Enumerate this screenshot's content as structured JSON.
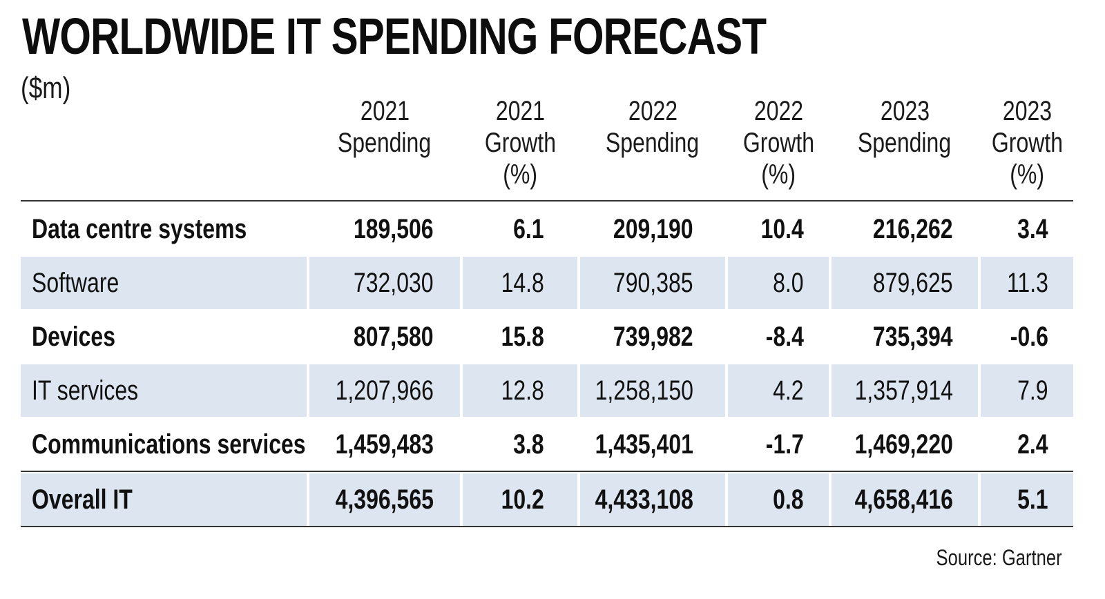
{
  "title": "WORLDWIDE IT SPENDING FORECAST",
  "subtitle": "($m)",
  "source": "Source: Gartner",
  "colors": {
    "row_shade": "#dde6f0",
    "text": "#111111",
    "rule": "#333333"
  },
  "chart_data": {
    "type": "table",
    "title": "WORLDWIDE IT SPENDING FORECAST",
    "subtitle": "($m)",
    "columns": [
      {
        "line1": "2021",
        "line2": "Spending",
        "line3": ""
      },
      {
        "line1": "2021",
        "line2": "Growth",
        "line3": "(%)"
      },
      {
        "line1": "2022",
        "line2": "Spending",
        "line3": ""
      },
      {
        "line1": "2022",
        "line2": "Growth",
        "line3": "(%)"
      },
      {
        "line1": "2023",
        "line2": "Spending",
        "line3": ""
      },
      {
        "line1": "2023",
        "line2": "Growth",
        "line3": "(%)"
      }
    ],
    "rows": [
      {
        "label": "Data centre systems",
        "bold": true,
        "values": [
          "189,506",
          "6.1",
          "209,190",
          "10.4",
          "216,262",
          "3.4"
        ]
      },
      {
        "label": "Software",
        "bold": false,
        "values": [
          "732,030",
          "14.8",
          "790,385",
          "8.0",
          "879,625",
          "11.3"
        ]
      },
      {
        "label": "Devices",
        "bold": true,
        "values": [
          "807,580",
          "15.8",
          "739,982",
          "-8.4",
          "735,394",
          "-0.6"
        ]
      },
      {
        "label": "IT services",
        "bold": false,
        "values": [
          "1,207,966",
          "12.8",
          "1,258,150",
          "4.2",
          "1,357,914",
          "7.9"
        ]
      },
      {
        "label": "Communications services",
        "bold": true,
        "values": [
          "1,459,483",
          "3.8",
          "1,435,401",
          "-1.7",
          "1,469,220",
          "2.4"
        ]
      },
      {
        "label": "Overall IT",
        "bold": true,
        "values": [
          "4,396,565",
          "10.2",
          "4,433,108",
          "0.8",
          "4,658,416",
          "5.1"
        ]
      }
    ]
  }
}
